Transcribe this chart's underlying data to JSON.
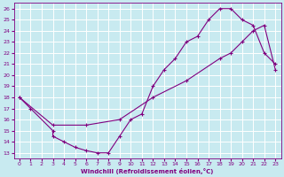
{
  "xlabel": "Windchill (Refroidissement éolien,°C)",
  "ylabel": "",
  "xlim": [
    -0.5,
    23.5
  ],
  "ylim": [
    12.5,
    26.5
  ],
  "xticks": [
    0,
    1,
    2,
    3,
    4,
    5,
    6,
    7,
    8,
    9,
    10,
    11,
    12,
    13,
    14,
    15,
    16,
    17,
    18,
    19,
    20,
    21,
    22,
    23
  ],
  "yticks": [
    13,
    14,
    15,
    16,
    17,
    18,
    19,
    20,
    21,
    22,
    23,
    24,
    25,
    26
  ],
  "bg_color": "#c8eaf0",
  "grid_color": "#ffffff",
  "line_color": "#800080",
  "line1_x": [
    0,
    1,
    3,
    3,
    4,
    5,
    6,
    7,
    8,
    9,
    10,
    11,
    12,
    13,
    14,
    15,
    16,
    17,
    18,
    19,
    20,
    21,
    22,
    23
  ],
  "line1_y": [
    18,
    17,
    15,
    14.5,
    14,
    13.5,
    13.2,
    13,
    13,
    14.5,
    16,
    16.5,
    19,
    20.5,
    21.5,
    23,
    23.5,
    25,
    26,
    26,
    25,
    24.5,
    22,
    21
  ],
  "line2_x": [
    0,
    3,
    6,
    9,
    12,
    15,
    18,
    19,
    20,
    21,
    22,
    23
  ],
  "line2_y": [
    18,
    15.5,
    15.5,
    16,
    18,
    19.5,
    21.5,
    22,
    23,
    24,
    24.5,
    20.5
  ]
}
